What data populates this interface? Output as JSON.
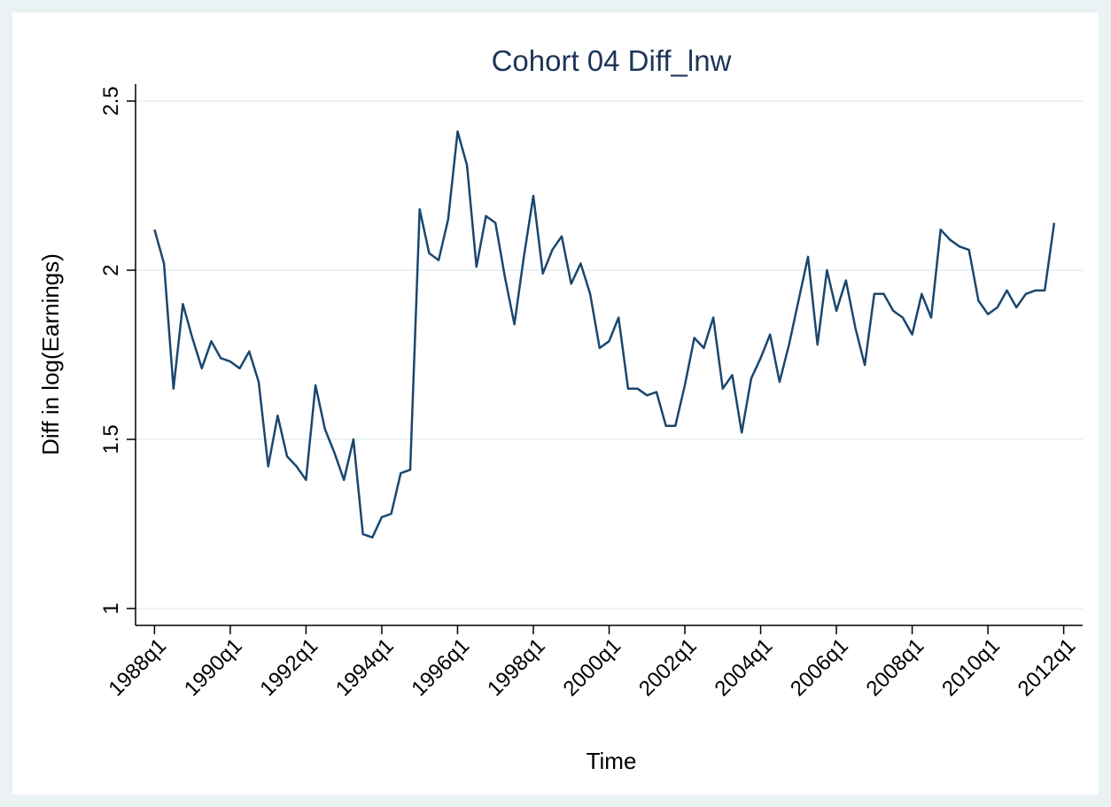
{
  "chart_data": {
    "type": "line",
    "title": "Cohort 04 Diff_lnw",
    "x_label": "Time",
    "y_label": "Diff in log(Earnings)",
    "x": [
      "1988q1",
      "1988q2",
      "1988q3",
      "1988q4",
      "1989q1",
      "1989q2",
      "1989q3",
      "1989q4",
      "1990q1",
      "1990q2",
      "1990q3",
      "1990q4",
      "1991q1",
      "1991q2",
      "1991q3",
      "1991q4",
      "1992q1",
      "1992q2",
      "1992q3",
      "1992q4",
      "1993q1",
      "1993q2",
      "1993q3",
      "1993q4",
      "1994q1",
      "1994q2",
      "1994q3",
      "1994q4",
      "1995q1",
      "1995q2",
      "1995q3",
      "1995q4",
      "1996q1",
      "1996q2",
      "1996q3",
      "1996q4",
      "1997q1",
      "1997q2",
      "1997q3",
      "1997q4",
      "1998q1",
      "1998q2",
      "1998q3",
      "1998q4",
      "1999q1",
      "1999q2",
      "1999q3",
      "1999q4",
      "2000q1",
      "2000q2",
      "2000q3",
      "2000q4",
      "2001q1",
      "2001q2",
      "2001q3",
      "2001q4",
      "2002q1",
      "2002q2",
      "2002q3",
      "2002q4",
      "2003q1",
      "2003q2",
      "2003q3",
      "2003q4",
      "2004q1",
      "2004q2",
      "2004q3",
      "2004q4",
      "2005q1",
      "2005q2",
      "2005q3",
      "2005q4",
      "2006q1",
      "2006q2",
      "2006q3",
      "2006q4",
      "2007q1",
      "2007q2",
      "2007q3",
      "2007q4",
      "2008q1",
      "2008q2",
      "2008q3",
      "2008q4",
      "2009q1",
      "2009q2",
      "2009q3",
      "2009q4",
      "2010q1",
      "2010q2",
      "2010q3",
      "2010q4",
      "2011q1",
      "2011q2",
      "2011q3",
      "2011q4"
    ],
    "series": [
      {
        "name": "Diff_lnw",
        "color": "#1a476f",
        "values": [
          2.12,
          2.02,
          1.65,
          1.9,
          1.8,
          1.71,
          1.79,
          1.74,
          1.73,
          1.71,
          1.76,
          1.67,
          1.42,
          1.57,
          1.45,
          1.42,
          1.38,
          1.66,
          1.53,
          1.46,
          1.38,
          1.5,
          1.22,
          1.21,
          1.27,
          1.28,
          1.4,
          1.41,
          2.18,
          2.05,
          2.03,
          2.15,
          2.41,
          2.31,
          2.01,
          2.16,
          2.14,
          1.98,
          1.84,
          2.04,
          2.22,
          1.99,
          2.06,
          2.1,
          1.96,
          2.02,
          1.93,
          1.77,
          1.79,
          1.86,
          1.65,
          1.65,
          1.63,
          1.64,
          1.54,
          1.54,
          1.66,
          1.8,
          1.77,
          1.86,
          1.65,
          1.69,
          1.52,
          1.68,
          1.74,
          1.81,
          1.67,
          1.78,
          1.91,
          2.04,
          1.78,
          2.0,
          1.88,
          1.97,
          1.83,
          1.72,
          1.93,
          1.93,
          1.88,
          1.86,
          1.81,
          1.93,
          1.86,
          2.12,
          2.09,
          2.07,
          2.06,
          1.91,
          1.87,
          1.89,
          1.94,
          1.89,
          1.93,
          1.94,
          1.94,
          2.14
        ]
      }
    ],
    "xlim": [
      "1987q3",
      "2012q3"
    ],
    "xticks": [
      "1988q1",
      "1990q1",
      "1992q1",
      "1994q1",
      "1996q1",
      "1998q1",
      "2000q1",
      "2002q1",
      "2004q1",
      "2006q1",
      "2008q1",
      "2010q1",
      "2012q1"
    ],
    "ylim": [
      0.95,
      2.55
    ],
    "yticks": [
      1,
      1.5,
      2,
      2.5
    ],
    "grid": true
  }
}
